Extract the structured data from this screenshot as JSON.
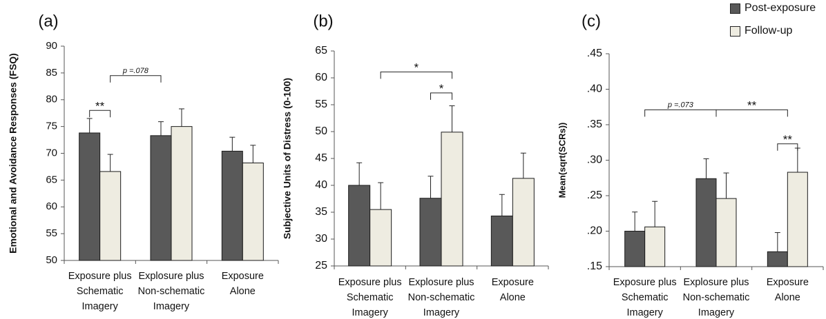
{
  "legend": {
    "post_label": "Post-exposure",
    "follow_label": "Follow-up"
  },
  "colors": {
    "post": "#595959",
    "follow": "#eeece1",
    "outline": "#1a1a1a"
  },
  "chart_data": [
    {
      "type": "bar",
      "panel_label": "(a)",
      "ylabel": "Emotional and Avoidance Responses (FSQ)",
      "ylim": [
        50,
        90
      ],
      "yticks": [
        "50",
        "55",
        "60",
        "65",
        "70",
        "75",
        "80",
        "85",
        "90"
      ],
      "categories": [
        [
          "Exposure plus",
          "Schematic",
          "Imagery"
        ],
        [
          "Explosure plus",
          "Non-schematic",
          "Imagery"
        ],
        [
          "Exposure",
          "Alone"
        ]
      ],
      "series": [
        {
          "key": "post",
          "values": [
            73.8,
            73.3,
            70.4
          ],
          "err": [
            2.7,
            2.6,
            2.6
          ]
        },
        {
          "key": "follow",
          "values": [
            66.6,
            75.0,
            68.2
          ],
          "err": [
            3.2,
            3.3,
            3.3
          ]
        }
      ],
      "annotations": [
        {
          "label": "**",
          "from": "0:post",
          "to": "0:follow",
          "level": 78
        },
        {
          "label": "p =.078",
          "from": "0:follow",
          "to": "1:post",
          "level": 84.5
        }
      ]
    },
    {
      "type": "bar",
      "panel_label": "(b)",
      "ylabel": "Subjective Units of Distress (0-100)",
      "ylim": [
        25,
        65
      ],
      "yticks": [
        "25",
        "30",
        "35",
        "40",
        "45",
        "50",
        "55",
        "60",
        "65"
      ],
      "categories": [
        [
          "Exposure plus",
          "Schematic",
          "Imagery"
        ],
        [
          "Explosure plus",
          "Non-schematic",
          "Imagery"
        ],
        [
          "Exposure",
          "Alone"
        ]
      ],
      "series": [
        {
          "key": "post",
          "values": [
            40.0,
            37.6,
            34.3
          ],
          "err": [
            4.2,
            4.1,
            4.0
          ]
        },
        {
          "key": "follow",
          "values": [
            35.5,
            49.9,
            41.3
          ],
          "err": [
            5.0,
            4.9,
            4.7
          ]
        }
      ],
      "annotations": [
        {
          "label": "*",
          "from": "1:post",
          "to": "1:follow",
          "level": 57.2
        },
        {
          "label": "*",
          "from": "0:follow",
          "to": "1:follow",
          "level": 61.1
        }
      ]
    },
    {
      "type": "bar",
      "panel_label": "(c)",
      "ylabel": "Mean(sqrt(SCRs))",
      "ylim": [
        0.15,
        0.45
      ],
      "yticks": [
        ".15",
        ".20",
        ".25",
        ".30",
        ".35",
        ".40",
        ".45"
      ],
      "categories": [
        [
          "Exposure plus",
          "Schematic",
          "Imagery"
        ],
        [
          "Explosure plus",
          "Non-schematic",
          "Imagery"
        ],
        [
          "Exposure",
          "Alone"
        ]
      ],
      "series": [
        {
          "key": "post",
          "values": [
            0.2,
            0.274,
            0.171
          ],
          "err": [
            0.027,
            0.028,
            0.027
          ]
        },
        {
          "key": "follow",
          "values": [
            0.206,
            0.246,
            0.283
          ],
          "err": [
            0.036,
            0.036,
            0.034
          ]
        }
      ],
      "annotations": [
        {
          "label": "p =.073",
          "from": "0:center",
          "to": "1:center",
          "level": 0.371
        },
        {
          "label": "**",
          "from": "1:center",
          "to": "2:center",
          "level": 0.371
        },
        {
          "label": "**",
          "from": "2:post",
          "to": "2:follow",
          "level": 0.323
        }
      ]
    }
  ]
}
